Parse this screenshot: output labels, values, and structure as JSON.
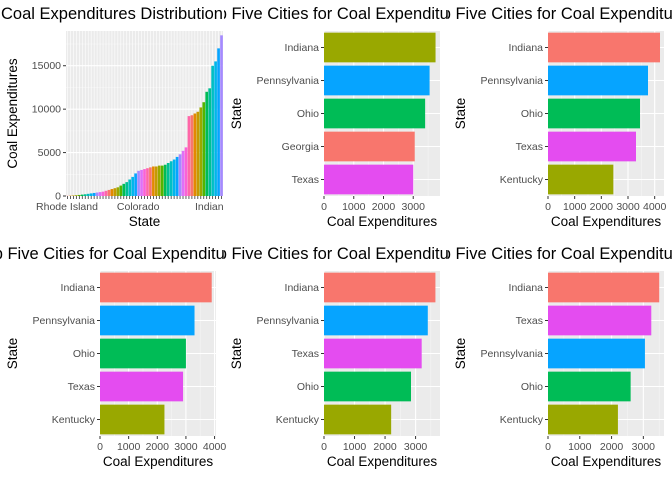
{
  "chart_data": [
    {
      "type": "bar",
      "title": "Coal Expenditures Distribution",
      "xlabel": "State",
      "ylabel": "Coal Expenditures",
      "xtick_labels": [
        "Rhode Island",
        "Colorado",
        "Indiana"
      ],
      "ylim": [
        0,
        19000
      ],
      "yticks": [
        0,
        5000,
        10000,
        15000
      ],
      "values": [
        20,
        40,
        60,
        90,
        120,
        160,
        200,
        250,
        300,
        350,
        400,
        450,
        500,
        600,
        700,
        800,
        900,
        1000,
        1200,
        1400,
        1600,
        1900,
        2200,
        2600,
        2900,
        3000,
        3100,
        3200,
        3300,
        3400,
        3400,
        3500,
        3500,
        3600,
        3800,
        4000,
        4200,
        4500,
        4800,
        5200,
        5600,
        9200,
        9300,
        9500,
        9700,
        10200,
        10800,
        12000,
        12400,
        15000,
        15500,
        17000,
        18500
      ],
      "colors": [
        "#F8766D",
        "#E38900",
        "#C49A00",
        "#99A800",
        "#53B400",
        "#00BC56",
        "#00C094",
        "#00BFC4",
        "#00B6EB",
        "#06A4FF",
        "#A58AFF",
        "#DF70F8",
        "#FB61D7",
        "#FF66A8"
      ]
    },
    {
      "type": "bar",
      "orientation": "horizontal",
      "title": "Top Five Cities for Coal Expenditures",
      "xlabel": "Coal Expenditures",
      "ylabel": "State",
      "categories": [
        "Indiana",
        "Pennsylvania",
        "Ohio",
        "Georgia",
        "Texas"
      ],
      "values": [
        3750,
        3550,
        3400,
        3050,
        3000
      ],
      "colors": [
        "#99A800",
        "#06A4FF",
        "#00BC56",
        "#F8766D",
        "#E44CF0"
      ],
      "xlim": [
        0,
        3900
      ],
      "xticks": [
        0,
        1000,
        2000,
        3000
      ]
    },
    {
      "type": "bar",
      "orientation": "horizontal",
      "title": "Top Five Cities for Coal Expenditures",
      "xlabel": "Coal Expenditures",
      "ylabel": "State",
      "categories": [
        "Indiana",
        "Pennsylvania",
        "Ohio",
        "Texas",
        "Kentucky"
      ],
      "values": [
        4200,
        3750,
        3450,
        3300,
        2450
      ],
      "colors": [
        "#F8766D",
        "#06A4FF",
        "#00BC56",
        "#E44CF0",
        "#99A800"
      ],
      "xlim": [
        0,
        4350
      ],
      "xticks": [
        0,
        1000,
        2000,
        3000,
        4000
      ]
    },
    {
      "type": "bar",
      "orientation": "horizontal",
      "title": "Top Five Cities for Coal Expenditures",
      "xlabel": "Coal Expenditures",
      "ylabel": "State",
      "categories": [
        "Indiana",
        "Pennsylvania",
        "Ohio",
        "Texas",
        "Kentucky"
      ],
      "values": [
        3900,
        3300,
        3000,
        2900,
        2250
      ],
      "colors": [
        "#F8766D",
        "#06A4FF",
        "#00BC56",
        "#E44CF0",
        "#99A800"
      ],
      "xlim": [
        0,
        4050
      ],
      "xticks": [
        0,
        1000,
        2000,
        3000,
        4000
      ]
    },
    {
      "type": "bar",
      "orientation": "horizontal",
      "title": "Top Five Cities for Coal Expenditures",
      "xlabel": "Coal Expenditures",
      "ylabel": "State",
      "categories": [
        "Indiana",
        "Pennsylvania",
        "Texas",
        "Ohio",
        "Kentucky"
      ],
      "values": [
        3650,
        3400,
        3200,
        2850,
        2200
      ],
      "colors": [
        "#F8766D",
        "#06A4FF",
        "#E44CF0",
        "#00BC56",
        "#99A800"
      ],
      "xlim": [
        0,
        3800
      ],
      "xticks": [
        0,
        1000,
        2000,
        3000
      ]
    },
    {
      "type": "bar",
      "orientation": "horizontal",
      "title": "Top Five Cities for Coal Expenditures",
      "xlabel": "Coal Expenditures",
      "ylabel": "State",
      "categories": [
        "Indiana",
        "Texas",
        "Pennsylvania",
        "Ohio",
        "Kentucky"
      ],
      "values": [
        3500,
        3250,
        3050,
        2600,
        2200
      ],
      "colors": [
        "#F8766D",
        "#E44CF0",
        "#06A4FF",
        "#00BC56",
        "#99A800"
      ],
      "xlim": [
        0,
        3650
      ],
      "xticks": [
        0,
        1000,
        2000,
        3000
      ]
    }
  ]
}
